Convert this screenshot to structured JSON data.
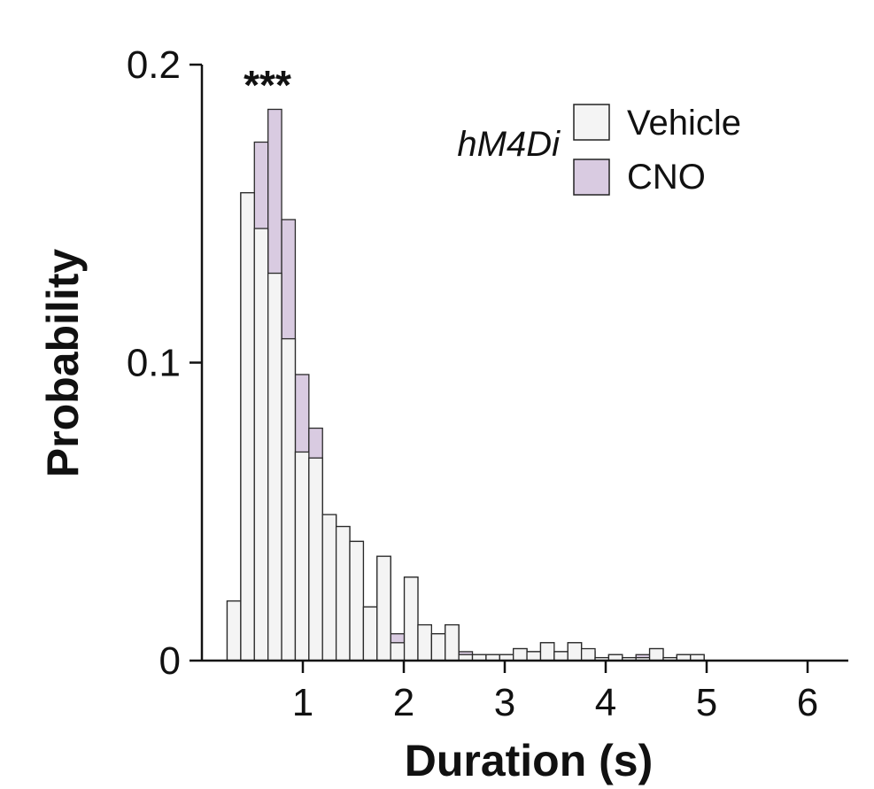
{
  "chart_data": {
    "type": "bar",
    "xlabel": "Duration (s)",
    "ylabel": "Probability",
    "xlim": [
      0,
      6.4
    ],
    "ylim": [
      0,
      0.2
    ],
    "xticks": [
      1,
      2,
      3,
      4,
      5,
      6
    ],
    "yticks": [
      0,
      0.1,
      0.2
    ],
    "ytick_labels": [
      "0",
      "0.1",
      "0.2"
    ],
    "bin_width": 0.135,
    "bin_starts": [
      0.25,
      0.385,
      0.52,
      0.655,
      0.79,
      0.925,
      1.06,
      1.195,
      1.33,
      1.465,
      1.6,
      1.735,
      1.87,
      2.005,
      2.14,
      2.275,
      2.41,
      2.545,
      2.68,
      2.815,
      2.95,
      3.085,
      3.22,
      3.355,
      3.49,
      3.625,
      3.76,
      3.895,
      4.03,
      4.165,
      4.3,
      4.435,
      4.57,
      4.705,
      4.84
    ],
    "legend_group_label": "hM4Di",
    "legend_position": "top-right",
    "annotation": "***",
    "series": [
      {
        "name": "CNO",
        "color": "#d9cbe1",
        "values": [
          0.02,
          0.157,
          0.174,
          0.185,
          0.148,
          0.096,
          0.078,
          0.049,
          0.045,
          0.04,
          0.018,
          0.035,
          0.009,
          0.028,
          0.012,
          0.009,
          0.012,
          0.003,
          0.002,
          0.002,
          0.002,
          0.004,
          0.003,
          0.006,
          0.003,
          0.006,
          0.003,
          0.001,
          0.002,
          0.001,
          0.002,
          0.004,
          0.001,
          0.002,
          0.002
        ]
      },
      {
        "name": "Vehicle",
        "color": "#f4f4f4",
        "values": [
          0.02,
          0.157,
          0.145,
          0.13,
          0.108,
          0.07,
          0.068,
          0.049,
          0.045,
          0.04,
          0.018,
          0.035,
          0.006,
          0.028,
          0.012,
          0.009,
          0.012,
          0.002,
          0.002,
          0.002,
          0.002,
          0.004,
          0.003,
          0.006,
          0.003,
          0.006,
          0.004,
          0.001,
          0.002,
          0.001,
          0.001,
          0.004,
          0.001,
          0.002,
          0.002
        ]
      }
    ]
  }
}
